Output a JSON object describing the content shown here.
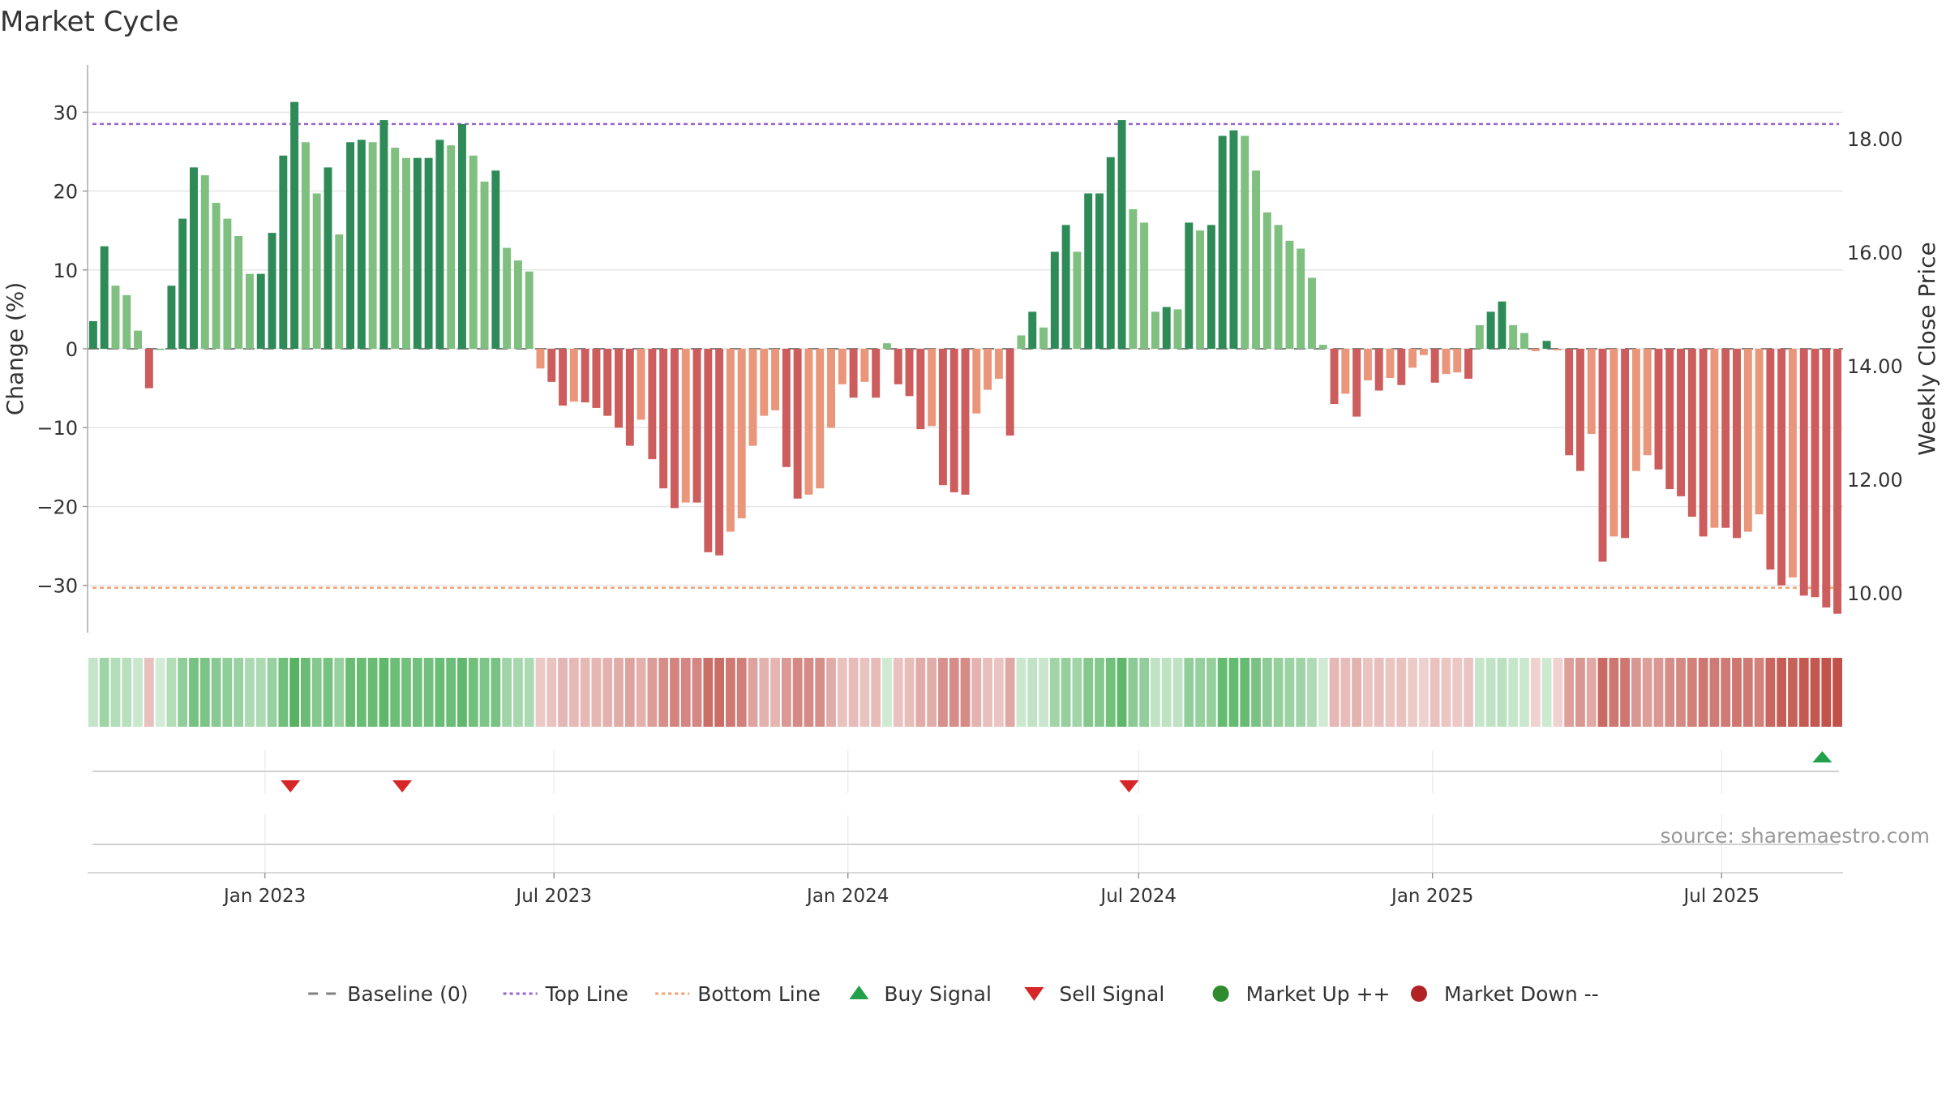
{
  "chart_data": {
    "type": "bar",
    "title": "Market Cycle",
    "ylabel": "Change (%)",
    "ylabel_right": "Weekly Close Price",
    "ylim": [
      -36,
      36
    ],
    "ylim_right": [
      9.3,
      19.3
    ],
    "y_ticks": [
      {
        "value": 30,
        "label": "30"
      },
      {
        "value": 20,
        "label": "20"
      },
      {
        "value": 10,
        "label": "10"
      },
      {
        "value": 0,
        "label": "0"
      },
      {
        "value": -10,
        "label": "−10"
      },
      {
        "value": -20,
        "label": "−20"
      },
      {
        "value": -30,
        "label": "−30"
      }
    ],
    "y_ticks_right": [
      {
        "value": 18,
        "label": "18.00"
      },
      {
        "value": 16,
        "label": "16.00"
      },
      {
        "value": 14,
        "label": "14.00"
      },
      {
        "value": 12,
        "label": "12.00"
      },
      {
        "value": 10,
        "label": "10.00"
      }
    ],
    "x_axis": {
      "start": "2022-09-12",
      "interval_days": 7,
      "ticks": [
        {
          "date": "2023-01-01",
          "label": "Jan 2023"
        },
        {
          "date": "2023-07-01",
          "label": "Jul 2023"
        },
        {
          "date": "2024-01-01",
          "label": "Jan 2024"
        },
        {
          "date": "2024-07-01",
          "label": "Jul 2024"
        },
        {
          "date": "2025-01-01",
          "label": "Jan 2025"
        },
        {
          "date": "2025-07-01",
          "label": "Jul 2025"
        }
      ]
    },
    "top_line": 28.5,
    "bottom_line": -30.3,
    "grid": true,
    "legend_position": "bottom",
    "series": [
      {
        "name": "Change (%)",
        "values": [
          3.5,
          13,
          8,
          6.8,
          2.3,
          -5,
          0,
          8,
          16.5,
          23,
          22,
          18.5,
          16.5,
          14.3,
          9.5,
          9.5,
          14.7,
          24.5,
          31.3,
          26.2,
          19.7,
          23,
          14.5,
          26.2,
          26.5,
          26.2,
          29,
          25.5,
          24.2,
          24.2,
          24.2,
          26.5,
          25.8,
          28.5,
          24.5,
          21.2,
          22.6,
          12.8,
          11.2,
          9.8,
          -2.5,
          -4.2,
          -7.2,
          -6.7,
          -6.8,
          -7.5,
          -8.5,
          -10,
          -12.3,
          -9,
          -14,
          -17.7,
          -20.2,
          -19.5,
          -19.5,
          -25.8,
          -26.2,
          -23.2,
          -21.5,
          -12.3,
          -8.5,
          -7.8,
          -15,
          -19,
          -18.5,
          -17.7,
          -10,
          -4.5,
          -6.2,
          -4.2,
          -6.2,
          0.7,
          -4.5,
          -6,
          -10.2,
          -9.8,
          -17.3,
          -18.2,
          -18.5,
          -8.2,
          -5.2,
          -3.8,
          -11,
          1.7,
          4.7,
          2.7,
          12.3,
          15.7,
          12.3,
          19.7,
          19.7,
          24.3,
          29,
          17.7,
          16,
          4.7,
          5.3,
          5,
          16,
          15,
          15.7,
          27,
          27.7,
          27,
          22.6,
          17.3,
          15.7,
          13.7,
          12.7,
          9,
          0.5,
          -7,
          -5.7,
          -8.6,
          -4,
          -5.3,
          -3.7,
          -4.6,
          -2.4,
          -0.8,
          -4.3,
          -3.2,
          -3,
          -3.8,
          3,
          4.7,
          6,
          3,
          2,
          -0.3,
          1,
          -0.2,
          -13.5,
          -15.5,
          -10.8,
          -27,
          -23.8,
          -24,
          -15.5,
          -13.5,
          -15.3,
          -17.8,
          -18.7,
          -21.3,
          -23.8,
          -22.7,
          -22.7,
          -24,
          -23.2,
          -21,
          -28,
          -30,
          -29,
          -31.3,
          -31.5,
          -32.8,
          -33.6
        ]
      }
    ],
    "signals": {
      "sell": [
        "2023-01-17",
        "2023-03-28",
        "2024-06-25"
      ],
      "buy": [
        "2025-09-02"
      ]
    },
    "legend": [
      {
        "label": "Baseline (0)",
        "symbol": "dash-line",
        "color": "#808080"
      },
      {
        "label": "Top Line",
        "symbol": "dotted-line",
        "color": "#9966cc"
      },
      {
        "label": "Bottom Line",
        "symbol": "dotted-line",
        "color": "#f0a070"
      },
      {
        "label": "Buy Signal",
        "symbol": "triangle-up-icon",
        "color": "#22a04a"
      },
      {
        "label": "Sell Signal",
        "symbol": "triangle-down-icon",
        "color": "#d62728"
      },
      {
        "label": "Market Up ++",
        "symbol": "circle-icon",
        "color": "#2e8b2e"
      },
      {
        "label": "Market Down --",
        "symbol": "circle-icon",
        "color": "#b22222"
      }
    ],
    "source": "source: sharemaestro.com",
    "colors": {
      "up_strong": "#2e8b57",
      "up_weak": "#7fbf7f",
      "down_strong": "#cd5c5c",
      "down_weak": "#e9967a",
      "top_line": "#9966cc",
      "bottom_line": "#f0a070",
      "baseline": "#808080",
      "heat_up": "#4caf5a",
      "heat_down": "#c05048"
    }
  }
}
